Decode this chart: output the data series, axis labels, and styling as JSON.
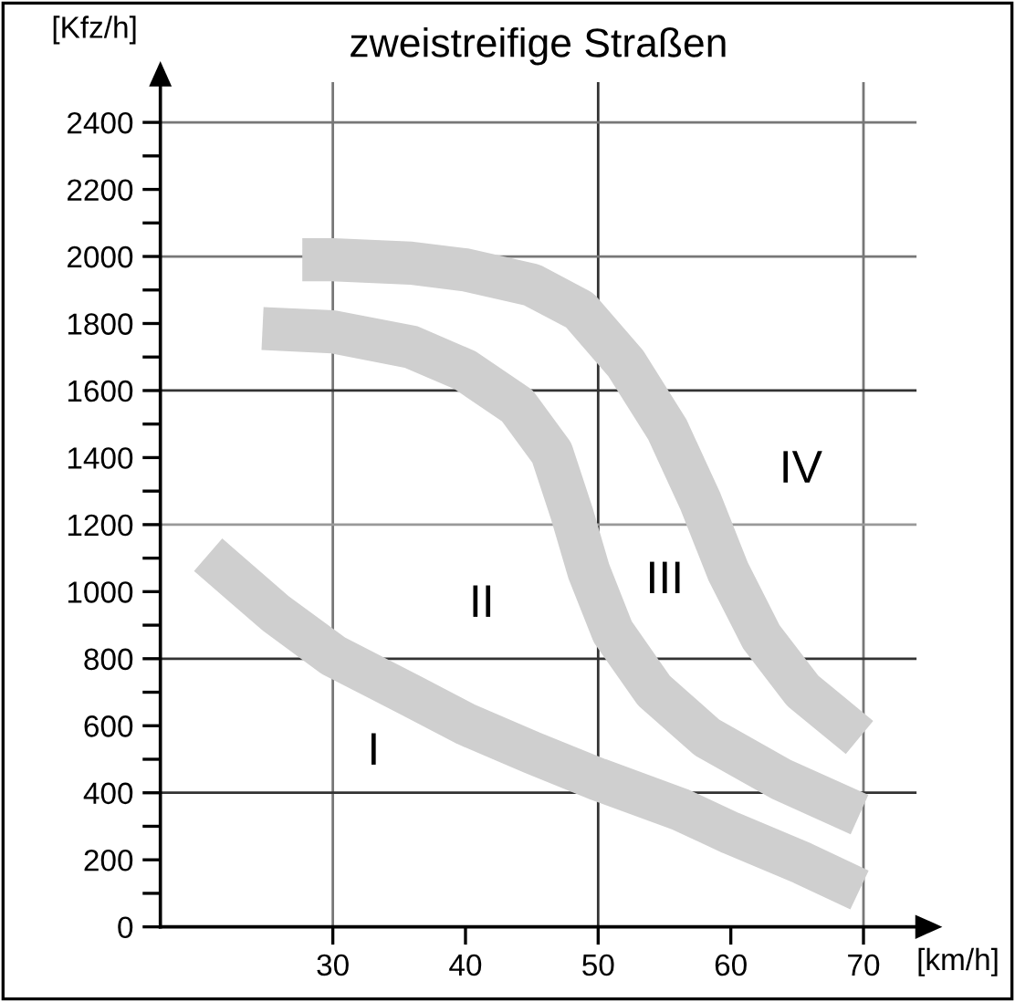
{
  "chart_data": {
    "type": "line",
    "title": "zweistreifige Straßen",
    "xlabel": "[km/h]",
    "ylabel": "[Kfz/h]",
    "xlim": [
      17,
      74
    ],
    "ylim": [
      0,
      2520
    ],
    "xticks": [
      30,
      40,
      50,
      60,
      70
    ],
    "yticks": [
      0,
      {
        "value": 100,
        "label": null
      },
      200,
      {
        "value": 300,
        "label": null
      },
      400,
      {
        "value": 500,
        "label": null
      },
      600,
      {
        "value": 700,
        "label": null
      },
      800,
      {
        "value": 900,
        "label": null
      },
      1000,
      {
        "value": 1100,
        "label": null
      },
      1200,
      {
        "value": 1300,
        "label": null
      },
      1400,
      {
        "value": 1500,
        "label": null
      },
      1600,
      {
        "value": 1700,
        "label": null
      },
      1800,
      {
        "value": 1900,
        "label": null
      },
      2000,
      {
        "value": 2100,
        "label": null
      },
      2200,
      {
        "value": 2300,
        "label": null
      },
      2400
    ],
    "series": [
      {
        "color": "#cfcfcf",
        "x": [
          20.6,
          25.7,
          30,
          35.9,
          40,
          45,
          50,
          56.2,
          60,
          65.4,
          69.7
        ],
        "values": [
          1110,
          935,
          810,
          690,
          605,
          520,
          440,
          350,
          280,
          190,
          110
        ]
      },
      {
        "color": "#cfcfcf",
        "x": [
          24.7,
          30,
          35.9,
          40,
          43.9,
          46.5,
          48,
          49.3,
          51.1,
          54.2,
          58.2,
          63.8,
          69.7
        ],
        "values": [
          1785,
          1775,
          1730,
          1660,
          1555,
          1415,
          1235,
          1060,
          880,
          705,
          565,
          440,
          335
        ]
      },
      {
        "color": "#cfcfcf",
        "x": [
          27.7,
          30,
          35.9,
          40,
          45,
          48.6,
          52.1,
          55.2,
          57.7,
          59.8,
          62.3,
          65.4,
          69.7
        ],
        "values": [
          1990,
          1990,
          1980,
          1960,
          1915,
          1840,
          1680,
          1485,
          1270,
          1060,
          865,
          705,
          565
        ]
      }
    ],
    "ref_lines": [
      {
        "axis": "x",
        "value": 30,
        "color": "#777777"
      },
      {
        "axis": "x",
        "value": 50,
        "color": "#333333"
      },
      {
        "axis": "x",
        "value": 70,
        "color": "#777777"
      },
      {
        "axis": "y",
        "value": 400,
        "color": "#333333"
      },
      {
        "axis": "y",
        "value": 800,
        "color": "#333333"
      },
      {
        "axis": "y",
        "value": 1200,
        "color": "#999999"
      },
      {
        "axis": "y",
        "value": 1600,
        "color": "#333333"
      },
      {
        "axis": "y",
        "value": 2000,
        "color": "#777777"
      },
      {
        "axis": "y",
        "value": 2400,
        "color": "#777777"
      }
    ],
    "annotations": [
      "I",
      "II",
      "III",
      "IV"
    ]
  }
}
